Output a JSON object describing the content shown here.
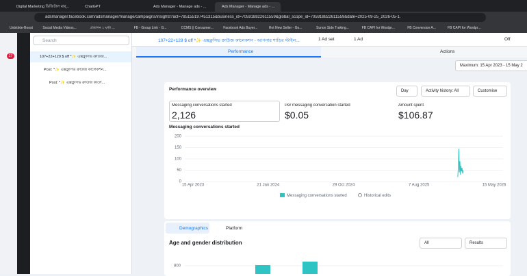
{
  "browser": {
    "tabs": [
      "Digital Marketing ডিজিটাল মার্...",
      "ChatGPT",
      "Ads Manager - Manage ads - ...",
      "Ads Manager - Manage ads - ..."
    ],
    "url": "adsmanager.facebook.com/adsmanager/manage/campaigns/insights?act=785155197451315&business_id=705918822611559&global_scope_id=705918822611559&date=2025-09-25_2026-05-1...",
    "bookmarks": [
      "Unblokle-Boost",
      "Social Media Videos...",
      "প্রতিদিন ১ ঘন্টা ...",
      "FB - Group Link - G...",
      "CCMS || Consumer...",
      "Facebook Ads Buyer...",
      "Hot New Seller - Go...",
      "Sunon Side Traking...",
      "FB CAPI for Wordpr...",
      "FB Conversion A...",
      "FB CAPI for Wordpr..."
    ]
  },
  "sidebar": {
    "badge": "17",
    "search": "Search",
    "tree": [
      "107+22+129 $ off *✨ এক্সক্লুসিভ ক্রাউজ...",
      "Post: *✨ এক্সক্লুসিভ ক্রাউজ কালেকশন...",
      "Post: *✨ এক্সক্লুসিভ ক্রাউজ কালে..."
    ]
  },
  "topbar": {
    "breadcrumb": "107+22+129 $ off *✨ এক্সক্লুসিভ ক্রাউজ কালেকশন - আপনার শাড়ির স্টাইল...",
    "adset": "1 Ad set",
    "ad": "1 Ad",
    "status": "Off",
    "tabs": [
      "Performance",
      "Actions"
    ],
    "date": "Maximum: 15 Apr 2023 - 15 May 2"
  },
  "overview": {
    "title": "Performance overview",
    "buttons": [
      "Day",
      "Activity history: All",
      "Customise"
    ],
    "metrics": [
      {
        "label": "Messaging conversations started",
        "value": "2,126"
      },
      {
        "label": "Per messaging conversation started",
        "value": "$0.05"
      },
      {
        "label": "Amount spent",
        "value": "$106.87"
      }
    ],
    "chart": {
      "title": "Messaging conversations started",
      "ylim": [
        0,
        200
      ],
      "yticks": [
        0,
        50,
        100,
        150,
        200
      ],
      "xlim": [
        0,
        1126
      ],
      "xticks": [
        {
          "value": 0,
          "label": "15 Apr 2023"
        },
        {
          "value": 281,
          "label": "21 Jan 2024"
        },
        {
          "value": 563,
          "label": "29 Oct 2024"
        },
        {
          "value": 845,
          "label": "7 Aug 2025"
        },
        {
          "value": 1126,
          "label": "15 May 2026"
        }
      ],
      "x": [
        990,
        992,
        994,
        996,
        998,
        1000,
        1002,
        1004,
        1006,
        1008,
        1010
      ],
      "values": [
        20,
        60,
        145,
        40,
        90,
        30,
        70,
        45,
        60,
        35,
        50
      ],
      "color": "#2ec4c4",
      "legend": [
        "Messaging conversations started",
        "Historical edits"
      ]
    }
  },
  "demographics": {
    "tabs": [
      "Demographics",
      "Platform"
    ],
    "title": "Age and gender distribution",
    "selects": [
      "All",
      "Results"
    ],
    "yticks": [
      800
    ],
    "values": [
      810,
      860
    ],
    "color": "#2ec4c4"
  }
}
